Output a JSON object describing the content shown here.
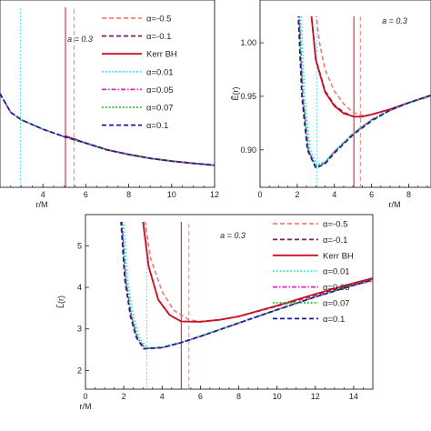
{
  "chart_data": [
    {
      "type": "line",
      "title": "",
      "xlabel": "r/M",
      "ylabel": "",
      "annotation": "a = 0.3",
      "xlim": [
        2,
        12
      ],
      "ylim": [
        0,
        1
      ],
      "xticks": [
        "4",
        "6",
        "8",
        "10",
        "12"
      ],
      "yticks": [],
      "grid": false,
      "legend_position": "top-right",
      "vlines": [
        {
          "x": 2.95,
          "color": "#40e0f0",
          "dash": "dotted"
        },
        {
          "x": 5.05,
          "color": "#cc1122",
          "dash": "solid"
        },
        {
          "x": 5.45,
          "color": "#f08080",
          "dash": "dashed"
        }
      ],
      "series": [
        {
          "name": "α=-0.5",
          "color": "#f08080",
          "dash": "dashed",
          "x": [
            5.45,
            6,
            7,
            8,
            9,
            10,
            11,
            12
          ],
          "y": [
            0.26,
            0.235,
            0.2,
            0.175,
            0.155,
            0.14,
            0.128,
            0.118
          ]
        },
        {
          "name": "α=-0.1",
          "color": "#7a1f6b",
          "dash": "dashed",
          "x": [
            5.1,
            6,
            7,
            8,
            9,
            10,
            11,
            12
          ],
          "y": [
            0.272,
            0.236,
            0.2,
            0.175,
            0.155,
            0.14,
            0.128,
            0.118
          ]
        },
        {
          "name": "Kerr BH",
          "color": "#cc1122",
          "dash": "solid",
          "x": [
            5.05,
            6,
            7,
            8,
            9,
            10,
            11,
            12
          ],
          "y": [
            0.274,
            0.236,
            0.2,
            0.175,
            0.155,
            0.14,
            0.128,
            0.118
          ]
        },
        {
          "name": "α=0.01",
          "color": "#40e0f0",
          "dash": "dotted",
          "x": [
            2,
            2.5,
            3,
            4,
            5,
            6,
            7,
            8,
            9,
            10,
            11,
            12
          ],
          "y": [
            0.5,
            0.4,
            0.36,
            0.31,
            0.27,
            0.236,
            0.2,
            0.175,
            0.155,
            0.14,
            0.128,
            0.118
          ]
        },
        {
          "name": "α=0.05",
          "color": "#dd22cc",
          "dash": "dashdot",
          "x": [
            2,
            2.5,
            3,
            4,
            5,
            6,
            7,
            8,
            9,
            10,
            11,
            12
          ],
          "y": [
            0.5,
            0.4,
            0.36,
            0.31,
            0.27,
            0.236,
            0.2,
            0.175,
            0.155,
            0.14,
            0.128,
            0.118
          ]
        },
        {
          "name": "α=0.07",
          "color": "#22bb22",
          "dash": "dotted",
          "x": [
            2,
            2.5,
            3,
            4,
            5,
            6,
            7,
            8,
            9,
            10,
            11,
            12
          ],
          "y": [
            0.5,
            0.4,
            0.36,
            0.31,
            0.27,
            0.236,
            0.2,
            0.175,
            0.155,
            0.14,
            0.128,
            0.118
          ]
        },
        {
          "name": "α=0.1",
          "color": "#1a1a9a",
          "dash": "dashed",
          "x": [
            2,
            2.5,
            3,
            4,
            5,
            6,
            7,
            8,
            9,
            10,
            11,
            12
          ],
          "y": [
            0.5,
            0.4,
            0.36,
            0.31,
            0.27,
            0.236,
            0.2,
            0.175,
            0.155,
            0.14,
            0.128,
            0.118
          ]
        }
      ]
    },
    {
      "type": "line",
      "title": "",
      "xlabel": "r/M",
      "ylabel": "Ẽ(r)",
      "annotation": "a = 0.3",
      "xlim": [
        0,
        9.2
      ],
      "ylim": [
        0.865,
        1.04
      ],
      "xticks": [
        "0",
        "2",
        "4",
        "6",
        "8"
      ],
      "yticks": [
        "0.90",
        "0.95",
        "1.00"
      ],
      "grid": false,
      "vlines": [
        {
          "x": 3.05,
          "color": "#40e0f0",
          "dash": "dotted"
        },
        {
          "x": 5.05,
          "color": "#cc1122",
          "dash": "solid"
        },
        {
          "x": 5.4,
          "color": "#f08080",
          "dash": "dashed"
        }
      ],
      "series": [
        {
          "name": "α=-0.5",
          "color": "#f08080",
          "dash": "dashed",
          "x": [
            3.0,
            3.2,
            3.5,
            4.0,
            4.5,
            5.0,
            5.5,
            6.0,
            7.0,
            8.0,
            9.2
          ],
          "y": [
            1.028,
            1.0,
            0.975,
            0.955,
            0.943,
            0.935,
            0.932,
            0.933,
            0.938,
            0.944,
            0.95
          ]
        },
        {
          "name": "α=-0.1",
          "color": "#7a1f6b",
          "dash": "dashed",
          "x": [
            2.75,
            3.0,
            3.5,
            4.0,
            4.5,
            5.05,
            5.5,
            6.0,
            7.0,
            8.0,
            9.2
          ],
          "y": [
            1.028,
            0.985,
            0.955,
            0.942,
            0.935,
            0.931,
            0.931,
            0.933,
            0.938,
            0.944,
            0.951
          ]
        },
        {
          "name": "Kerr BH",
          "color": "#cc1122",
          "dash": "solid",
          "x": [
            2.75,
            3.0,
            3.5,
            4.0,
            4.5,
            5.05,
            5.5,
            6.0,
            7.0,
            8.0,
            9.2
          ],
          "y": [
            1.028,
            0.984,
            0.954,
            0.941,
            0.934,
            0.931,
            0.931,
            0.933,
            0.938,
            0.944,
            0.951
          ]
        },
        {
          "name": "α=0.01",
          "color": "#40e0f0",
          "dash": "dotted",
          "x": [
            2.2,
            2.4,
            2.7,
            3.05,
            3.5,
            4.0,
            5.0,
            6.0,
            7.0,
            8.0,
            9.2
          ],
          "y": [
            1.028,
            0.95,
            0.9,
            0.886,
            0.889,
            0.899,
            0.915,
            0.928,
            0.937,
            0.944,
            0.951
          ]
        },
        {
          "name": "α=0.05",
          "color": "#dd22cc",
          "dash": "dashdot",
          "x": [
            2.1,
            2.3,
            2.6,
            3.0,
            3.5,
            4.0,
            5.0,
            6.0,
            7.0,
            8.0,
            9.2
          ],
          "y": [
            1.028,
            0.95,
            0.9,
            0.884,
            0.888,
            0.898,
            0.915,
            0.928,
            0.937,
            0.944,
            0.951
          ]
        },
        {
          "name": "α=0.07",
          "color": "#22bb22",
          "dash": "dotted",
          "x": [
            2.1,
            2.3,
            2.6,
            3.0,
            3.5,
            4.0,
            5.0,
            6.0,
            7.0,
            8.0,
            9.2
          ],
          "y": [
            1.028,
            0.95,
            0.9,
            0.884,
            0.888,
            0.898,
            0.915,
            0.928,
            0.937,
            0.944,
            0.951
          ]
        },
        {
          "name": "α=0.1",
          "color": "#1a1a9a",
          "dash": "dashed",
          "x": [
            2.05,
            2.25,
            2.55,
            3.0,
            3.5,
            4.0,
            5.0,
            6.0,
            7.0,
            8.0,
            9.2
          ],
          "y": [
            1.028,
            0.95,
            0.9,
            0.883,
            0.887,
            0.897,
            0.914,
            0.927,
            0.937,
            0.944,
            0.951
          ]
        }
      ]
    },
    {
      "type": "line",
      "title": "",
      "xlabel": "r/M",
      "ylabel": "L̃(r)",
      "annotation": "a = 0.3",
      "xlim": [
        0,
        15
      ],
      "ylim": [
        1.55,
        5.75
      ],
      "xticks": [
        "0",
        "2",
        "4",
        "6",
        "8",
        "10",
        "12",
        "14"
      ],
      "yticks": [
        "2",
        "3",
        "4",
        "5"
      ],
      "grid": false,
      "legend_position": "top-right",
      "vlines": [
        {
          "x": 3.2,
          "color": "#40e0f0",
          "dash": "dotted"
        },
        {
          "x": 5.0,
          "color": "#cc1122",
          "dash": "solid"
        },
        {
          "x": 5.4,
          "color": "#f08080",
          "dash": "dashed"
        }
      ],
      "series": [
        {
          "name": "α=-0.5",
          "color": "#f08080",
          "dash": "dashed",
          "x": [
            3.1,
            3.4,
            4.0,
            4.6,
            5.4,
            6,
            7,
            8,
            10,
            12,
            14,
            15
          ],
          "y": [
            5.6,
            4.7,
            3.9,
            3.45,
            3.22,
            3.18,
            3.22,
            3.3,
            3.55,
            3.8,
            4.05,
            4.15
          ]
        },
        {
          "name": "α=-0.1",
          "color": "#7a1f6b",
          "dash": "dashed",
          "x": [
            3.0,
            3.3,
            3.8,
            4.4,
            5.0,
            6,
            7,
            8,
            10,
            12,
            14,
            15
          ],
          "y": [
            5.6,
            4.5,
            3.7,
            3.33,
            3.18,
            3.17,
            3.22,
            3.3,
            3.55,
            3.82,
            4.08,
            4.2
          ]
        },
        {
          "name": "Kerr BH",
          "color": "#cc1122",
          "dash": "solid",
          "x": [
            3.0,
            3.3,
            3.8,
            4.4,
            5.0,
            6,
            7,
            8,
            10,
            12,
            14,
            15
          ],
          "y": [
            5.6,
            4.5,
            3.7,
            3.33,
            3.18,
            3.17,
            3.22,
            3.3,
            3.56,
            3.84,
            4.1,
            4.22
          ]
        },
        {
          "name": "α=0.01",
          "color": "#40e0f0",
          "dash": "dotted",
          "x": [
            2.0,
            2.2,
            2.5,
            2.8,
            3.2,
            4,
            5,
            6,
            8,
            10,
            12,
            14,
            15
          ],
          "y": [
            5.6,
            4.2,
            3.3,
            2.8,
            2.55,
            2.56,
            2.68,
            2.83,
            3.15,
            3.47,
            3.77,
            4.05,
            4.18
          ]
        },
        {
          "name": "α=0.05",
          "color": "#dd22cc",
          "dash": "dashdot",
          "x": [
            1.9,
            2.1,
            2.4,
            2.7,
            3.1,
            4,
            5,
            6,
            8,
            10,
            12,
            14,
            15
          ],
          "y": [
            5.6,
            4.2,
            3.3,
            2.8,
            2.53,
            2.55,
            2.67,
            2.82,
            3.14,
            3.46,
            3.77,
            4.05,
            4.18
          ]
        },
        {
          "name": "α=0.07",
          "color": "#22bb22",
          "dash": "dotted",
          "x": [
            1.9,
            2.1,
            2.4,
            2.7,
            3.1,
            4,
            5,
            6,
            8,
            10,
            12,
            14,
            15
          ],
          "y": [
            5.6,
            4.2,
            3.3,
            2.8,
            2.53,
            2.55,
            2.67,
            2.82,
            3.14,
            3.46,
            3.77,
            4.05,
            4.18
          ]
        },
        {
          "name": "α=0.1",
          "color": "#1a1a9a",
          "dash": "dashed",
          "x": [
            1.85,
            2.05,
            2.35,
            2.65,
            3.05,
            4,
            5,
            6,
            8,
            10,
            12,
            14,
            15
          ],
          "y": [
            5.6,
            4.2,
            3.3,
            2.8,
            2.52,
            2.55,
            2.67,
            2.82,
            3.14,
            3.46,
            3.77,
            4.05,
            4.18
          ]
        }
      ]
    }
  ]
}
